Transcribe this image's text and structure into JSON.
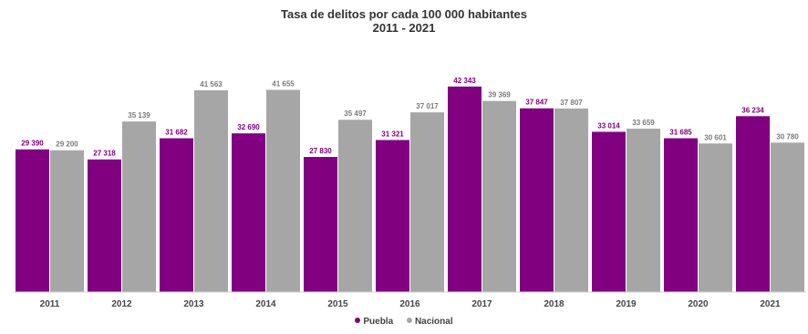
{
  "chart_data": {
    "type": "bar",
    "title": "Tasa de delitos por cada 100 000 habitantes",
    "subtitle": "2011 - 2021",
    "categories": [
      "2011",
      "2012",
      "2013",
      "2014",
      "2015",
      "2016",
      "2017",
      "2018",
      "2019",
      "2020",
      "2021"
    ],
    "series": [
      {
        "name": "Puebla",
        "color": "#800080",
        "values": [
          29390,
          27318,
          31682,
          32690,
          27830,
          31321,
          42343,
          37847,
          33014,
          31685,
          36234
        ],
        "labels": [
          "29 390",
          "27 318",
          "31 682",
          "32 690",
          "27 830",
          "31 321",
          "42 343",
          "37 847",
          "33 014",
          "31 685",
          "36 234"
        ]
      },
      {
        "name": "Nacional",
        "color": "#a6a6a6",
        "values": [
          29200,
          35139,
          41563,
          41655,
          35497,
          37017,
          39369,
          37807,
          33659,
          30601,
          30780
        ],
        "labels": [
          "29 200",
          "35 139",
          "41 563",
          "41 655",
          "35 497",
          "37 017",
          "39 369",
          "37 807",
          "33 659",
          "30 601",
          "30 780"
        ]
      }
    ],
    "ylim": [
      0,
      44000
    ],
    "grid": false,
    "legend_position": "bottom"
  }
}
